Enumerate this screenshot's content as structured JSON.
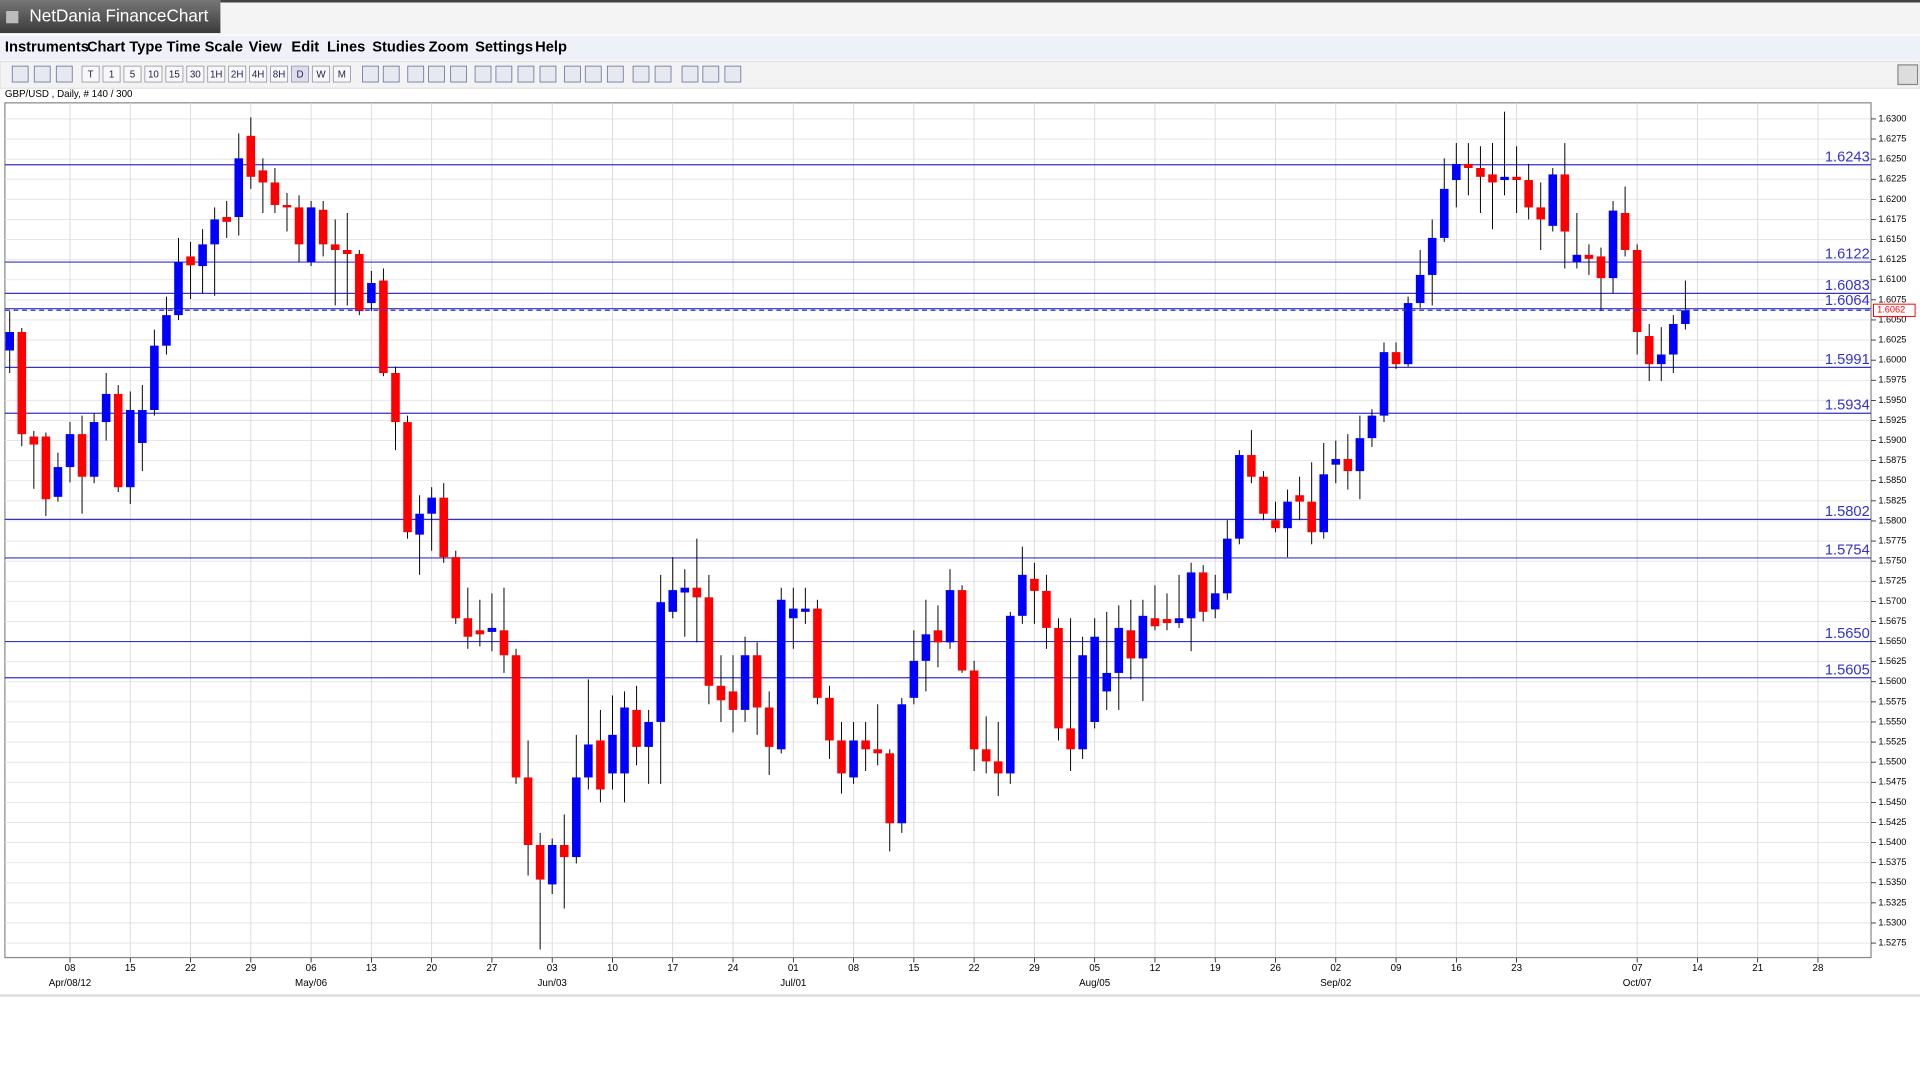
{
  "window": {
    "title": "NetDania FinanceChart"
  },
  "menu": [
    "Instruments",
    "Chart Type",
    "Time Scale",
    "View",
    "Edit",
    "Lines",
    "Studies",
    "Zoom",
    "Settings",
    "Help"
  ],
  "toolbar": [
    "T",
    "1",
    "5",
    "10",
    "15",
    "30",
    "1H",
    "2H",
    "4H",
    "8H",
    "D",
    "W",
    "M"
  ],
  "chart_data": {
    "type": "candlestick",
    "subtitle": "GBP/USD , Daily, # 140 / 300",
    "up_color": "#0000ff",
    "down_color": "#ff0000",
    "level_color": "#3333cc",
    "grid": true,
    "open": [
      1.6012,
      1.6035,
      1.5905,
      1.5905,
      1.583,
      1.5867,
      1.5908,
      1.5855,
      1.5923,
      1.5958,
      1.5842,
      1.5897,
      1.5938,
      1.6018,
      1.6056,
      1.6129,
      1.6117,
      1.6144,
      1.6178,
      1.6178,
      1.6279,
      1.6236,
      1.6221,
      1.6193,
      1.619,
      1.6122,
      1.6187,
      1.6144,
      1.6137,
      1.6132,
      1.6071,
      1.6099,
      1.5984,
      1.5923,
      1.5783,
      1.5809,
      1.5829,
      1.5755,
      1.5679,
      1.5664,
      1.5662,
      1.5664,
      1.5633,
      1.5481,
      1.5397,
      1.5348,
      1.5397,
      1.5382,
      1.5481,
      1.5527,
      1.5486,
      1.5486,
      1.5565,
      1.5519,
      1.555,
      1.5687,
      1.5711,
      1.5717,
      1.5705,
      1.5595,
      1.5588,
      1.5565,
      1.5633,
      1.5568,
      1.5516,
      1.5679,
      1.5687,
      1.5691,
      1.558,
      1.5527,
      1.5481,
      1.5527,
      1.5516,
      1.5511,
      1.5424,
      1.558,
      1.5626,
      1.5664,
      1.5649,
      1.5714,
      1.5614,
      1.5516,
      1.5501,
      1.5486,
      1.5682,
      1.5728,
      1.5713,
      1.5667,
      1.5542,
      1.5516,
      1.555,
      1.5588,
      1.5611,
      1.5664,
      1.5629,
      1.5679,
      1.5678,
      1.5673,
      1.5679,
      1.5736,
      1.569,
      1.571,
      1.5778,
      1.5882,
      1.5855,
      1.5801,
      1.5791,
      1.5832,
      1.5824,
      1.5786,
      1.587,
      1.5877,
      1.5862,
      1.5903,
      1.5931,
      1.601,
      1.5995,
      1.6071,
      1.6106,
      1.6152,
      1.6224,
      1.6244,
      1.6239,
      1.6231,
      1.6224,
      1.6228,
      1.6224,
      1.619,
      1.6167,
      1.6231,
      1.6122,
      1.6131,
      1.6129,
      1.6102,
      1.6183,
      1.6137,
      1.603,
      1.5995,
      1.6007,
      1.6045
    ],
    "high": [
      1.6061,
      1.604,
      1.5912,
      1.591,
      1.5885,
      1.5923,
      1.5931,
      1.5934,
      1.5984,
      1.5969,
      1.5961,
      1.5969,
      1.6038,
      1.6079,
      1.6152,
      1.6147,
      1.6163,
      1.619,
      1.6198,
      1.6282,
      1.6302,
      1.6251,
      1.6239,
      1.6208,
      1.6205,
      1.6198,
      1.6198,
      1.6175,
      1.6183,
      1.6137,
      1.6111,
      1.6114,
      1.5992,
      1.5931,
      1.5832,
      1.5842,
      1.5847,
      1.5763,
      1.5717,
      1.5702,
      1.571,
      1.5717,
      1.5641,
      1.5527,
      1.5412,
      1.5405,
      1.5435,
      1.5534,
      1.5603,
      1.5565,
      1.5583,
      1.5588,
      1.5595,
      1.5565,
      1.5733,
      1.5755,
      1.574,
      1.5778,
      1.5733,
      1.5633,
      1.5633,
      1.5656,
      1.5649,
      1.5588,
      1.5717,
      1.5717,
      1.5717,
      1.5702,
      1.5595,
      1.555,
      1.555,
      1.555,
      1.5572,
      1.5516,
      1.558,
      1.5664,
      1.5702,
      1.5695,
      1.574,
      1.572,
      1.5626,
      1.5557,
      1.555,
      1.5687,
      1.5768,
      1.5748,
      1.5733,
      1.5679,
      1.5679,
      1.5656,
      1.5679,
      1.5687,
      1.5695,
      1.5702,
      1.5702,
      1.572,
      1.571,
      1.5733,
      1.5748,
      1.5745,
      1.5733,
      1.5801,
      1.5888,
      1.5913,
      1.5862,
      1.5824,
      1.5839,
      1.5855,
      1.5873,
      1.5897,
      1.59,
      1.5908,
      1.5931,
      1.5939,
      1.6022,
      1.6022,
      1.6079,
      1.6137,
      1.6175,
      1.6251,
      1.627,
      1.627,
      1.6266,
      1.627,
      1.6309,
      1.6266,
      1.6244,
      1.6221,
      1.6239,
      1.627,
      1.6183,
      1.6144,
      1.614,
      1.6198,
      1.6216,
      1.6144,
      1.6045,
      1.6041,
      1.6056,
      1.6099
    ],
    "low": [
      1.5984,
      1.5893,
      1.584,
      1.5806,
      1.5824,
      1.5848,
      1.5809,
      1.5847,
      1.59,
      1.5836,
      1.5821,
      1.5862,
      1.5931,
      1.6007,
      1.605,
      1.6076,
      1.6083,
      1.608,
      1.6152,
      1.6155,
      1.6213,
      1.6183,
      1.6183,
      1.616,
      1.6122,
      1.6117,
      1.6129,
      1.6068,
      1.6068,
      1.6056,
      1.6061,
      1.598,
      1.5888,
      1.5778,
      1.5733,
      1.5763,
      1.5748,
      1.5672,
      1.5641,
      1.5644,
      1.5638,
      1.5611,
      1.5473,
      1.5359,
      1.5267,
      1.5336,
      1.5318,
      1.5374,
      1.5466,
      1.545,
      1.5466,
      1.545,
      1.5496,
      1.5473,
      1.5473,
      1.5679,
      1.5656,
      1.5649,
      1.5572,
      1.555,
      1.5537,
      1.555,
      1.5534,
      1.5484,
      1.5511,
      1.5641,
      1.5672,
      1.5572,
      1.5504,
      1.5461,
      1.5473,
      1.5489,
      1.5496,
      1.5389,
      1.5412,
      1.5572,
      1.5588,
      1.5618,
      1.5641,
      1.5611,
      1.5489,
      1.5486,
      1.5458,
      1.5473,
      1.5672,
      1.5672,
      1.5641,
      1.5527,
      1.5489,
      1.5504,
      1.5542,
      1.5565,
      1.5565,
      1.5603,
      1.5576,
      1.5664,
      1.5664,
      1.5667,
      1.5638,
      1.5675,
      1.5679,
      1.5702,
      1.5771,
      1.5847,
      1.5801,
      1.5786,
      1.5755,
      1.5801,
      1.5771,
      1.5778,
      1.5847,
      1.5839,
      1.5827,
      1.5892,
      1.5923,
      1.5989,
      1.5992,
      1.6065,
      1.6068,
      1.6147,
      1.619,
      1.6205,
      1.6183,
      1.6163,
      1.6205,
      1.6183,
      1.6175,
      1.6137,
      1.616,
      1.6114,
      1.6114,
      1.6106,
      1.6061,
      1.6083,
      1.6129,
      1.6007,
      1.5974,
      1.5974,
      1.5984,
      1.6038
    ],
    "close": [
      1.6035,
      1.5908,
      1.5895,
      1.5827,
      1.5867,
      1.5908,
      1.5855,
      1.5923,
      1.5958,
      1.5842,
      1.5938,
      1.5938,
      1.6018,
      1.6056,
      1.6122,
      1.6118,
      1.6144,
      1.6175,
      1.6172,
      1.6251,
      1.6228,
      1.6221,
      1.6193,
      1.619,
      1.6144,
      1.619,
      1.6144,
      1.6137,
      1.6132,
      1.6061,
      1.6096,
      1.5984,
      1.5923,
      1.5786,
      1.5809,
      1.5829,
      1.5755,
      1.5679,
      1.5656,
      1.5659,
      1.5667,
      1.5633,
      1.5481,
      1.5397,
      1.5354,
      1.5397,
      1.5382,
      1.5481,
      1.5522,
      1.5466,
      1.5534,
      1.5568,
      1.5519,
      1.555,
      1.5699,
      1.5714,
      1.5717,
      1.5705,
      1.5595,
      1.5577,
      1.5565,
      1.5633,
      1.5568,
      1.5519,
      1.5702,
      1.5691,
      1.5691,
      1.558,
      1.5527,
      1.5486,
      1.5527,
      1.5516,
      1.5511,
      1.5424,
      1.5572,
      1.5626,
      1.5659,
      1.5649,
      1.5714,
      1.5614,
      1.5516,
      1.5501,
      1.5486,
      1.5682,
      1.5733,
      1.5713,
      1.5667,
      1.5542,
      1.5516,
      1.5633,
      1.5656,
      1.5611,
      1.5667,
      1.5629,
      1.5682,
      1.5669,
      1.5673,
      1.5679,
      1.5736,
      1.5687,
      1.571,
      1.5778,
      1.5882,
      1.5855,
      1.5809,
      1.5791,
      1.5824,
      1.5824,
      1.5786,
      1.5858,
      1.5877,
      1.5862,
      1.5903,
      1.5931,
      1.601,
      1.5995,
      1.6071,
      1.6106,
      1.6152,
      1.6213,
      1.6244,
      1.6239,
      1.6228,
      1.6221,
      1.6228,
      1.6224,
      1.619,
      1.6175,
      1.6231,
      1.616,
      1.6131,
      1.6126,
      1.6102,
      1.6186,
      1.6137,
      1.6035,
      1.5995,
      1.6007,
      1.6045,
      1.6062
    ],
    "levels": [
      {
        "value": 1.6243,
        "label": "1.6243"
      },
      {
        "value": 1.6122,
        "label": "1.6122"
      },
      {
        "value": 1.6083,
        "label": "1.6083"
      },
      {
        "value": 1.6064,
        "label": "1.6064"
      },
      {
        "value": 1.5991,
        "label": "1.5991"
      },
      {
        "value": 1.5934,
        "label": "1.5934"
      },
      {
        "value": 1.5802,
        "label": "1.5802"
      },
      {
        "value": 1.5754,
        "label": "1.5754"
      },
      {
        "value": 1.565,
        "label": "1.5650"
      },
      {
        "value": 1.5605,
        "label": "1.5605"
      }
    ],
    "last_price": {
      "value": 1.6062,
      "label": "1.6062"
    },
    "xlim": [
      -0.4,
      154.4
    ],
    "xticks": [
      {
        "value": 5,
        "label": "08"
      },
      {
        "value": 10,
        "label": "15"
      },
      {
        "value": 15,
        "label": "22"
      },
      {
        "value": 20,
        "label": "29"
      },
      {
        "value": 25,
        "label": "06"
      },
      {
        "value": 30,
        "label": "13"
      },
      {
        "value": 35,
        "label": "20"
      },
      {
        "value": 40,
        "label": "27"
      },
      {
        "value": 45,
        "label": "03"
      },
      {
        "value": 50,
        "label": "10"
      },
      {
        "value": 55,
        "label": "17"
      },
      {
        "value": 60,
        "label": "24"
      },
      {
        "value": 65,
        "label": "01"
      },
      {
        "value": 70,
        "label": "08"
      },
      {
        "value": 75,
        "label": "15"
      },
      {
        "value": 80,
        "label": "22"
      },
      {
        "value": 85,
        "label": "29"
      },
      {
        "value": 90,
        "label": "05"
      },
      {
        "value": 95,
        "label": "12"
      },
      {
        "value": 100,
        "label": "19"
      },
      {
        "value": 105,
        "label": "26"
      },
      {
        "value": 110,
        "label": "02"
      },
      {
        "value": 115,
        "label": "09"
      },
      {
        "value": 120,
        "label": "16"
      },
      {
        "value": 125,
        "label": "23"
      },
      {
        "value": 135,
        "label": "07"
      },
      {
        "value": 140,
        "label": "14"
      },
      {
        "value": 145,
        "label": "21"
      },
      {
        "value": 150,
        "label": "28"
      }
    ],
    "xmonths": [
      {
        "value": 5,
        "label": "Apr/08/12"
      },
      {
        "value": 25,
        "label": "May/06"
      },
      {
        "value": 45,
        "label": "Jun/03"
      },
      {
        "value": 65,
        "label": "Jul/01"
      },
      {
        "value": 90,
        "label": "Aug/05"
      },
      {
        "value": 110,
        "label": "Sep/02"
      },
      {
        "value": 135,
        "label": "Oct/07"
      }
    ],
    "ylim": [
      1.5257,
      1.632
    ],
    "yticks": [
      {
        "value": 1.63,
        "label": "1.6300"
      },
      {
        "value": 1.6275,
        "label": "1.6275"
      },
      {
        "value": 1.625,
        "label": "1.6250"
      },
      {
        "value": 1.6225,
        "label": "1.6225"
      },
      {
        "value": 1.62,
        "label": "1.6200"
      },
      {
        "value": 1.6175,
        "label": "1.6175"
      },
      {
        "value": 1.615,
        "label": "1.6150"
      },
      {
        "value": 1.6125,
        "label": "1.6125"
      },
      {
        "value": 1.61,
        "label": "1.6100"
      },
      {
        "value": 1.6075,
        "label": "1.6075"
      },
      {
        "value": 1.605,
        "label": "1.6050"
      },
      {
        "value": 1.6025,
        "label": "1.6025"
      },
      {
        "value": 1.6,
        "label": "1.6000"
      },
      {
        "value": 1.5975,
        "label": "1.5975"
      },
      {
        "value": 1.595,
        "label": "1.5950"
      },
      {
        "value": 1.5925,
        "label": "1.5925"
      },
      {
        "value": 1.59,
        "label": "1.5900"
      },
      {
        "value": 1.5875,
        "label": "1.5875"
      },
      {
        "value": 1.585,
        "label": "1.5850"
      },
      {
        "value": 1.5825,
        "label": "1.5825"
      },
      {
        "value": 1.58,
        "label": "1.5800"
      },
      {
        "value": 1.5775,
        "label": "1.5775"
      },
      {
        "value": 1.575,
        "label": "1.5750"
      },
      {
        "value": 1.5725,
        "label": "1.5725"
      },
      {
        "value": 1.57,
        "label": "1.5700"
      },
      {
        "value": 1.5675,
        "label": "1.5675"
      },
      {
        "value": 1.565,
        "label": "1.5650"
      },
      {
        "value": 1.5625,
        "label": "1.5625"
      },
      {
        "value": 1.56,
        "label": "1.5600"
      },
      {
        "value": 1.5575,
        "label": "1.5575"
      },
      {
        "value": 1.555,
        "label": "1.5550"
      },
      {
        "value": 1.5525,
        "label": "1.5525"
      },
      {
        "value": 1.55,
        "label": "1.5500"
      },
      {
        "value": 1.5475,
        "label": "1.5475"
      },
      {
        "value": 1.545,
        "label": "1.5450"
      },
      {
        "value": 1.5425,
        "label": "1.5425"
      },
      {
        "value": 1.54,
        "label": "1.5400"
      },
      {
        "value": 1.5375,
        "label": "1.5375"
      },
      {
        "value": 1.535,
        "label": "1.5350"
      },
      {
        "value": 1.5325,
        "label": "1.5325"
      },
      {
        "value": 1.53,
        "label": "1.5300"
      },
      {
        "value": 1.5275,
        "label": "1.5275"
      }
    ]
  }
}
